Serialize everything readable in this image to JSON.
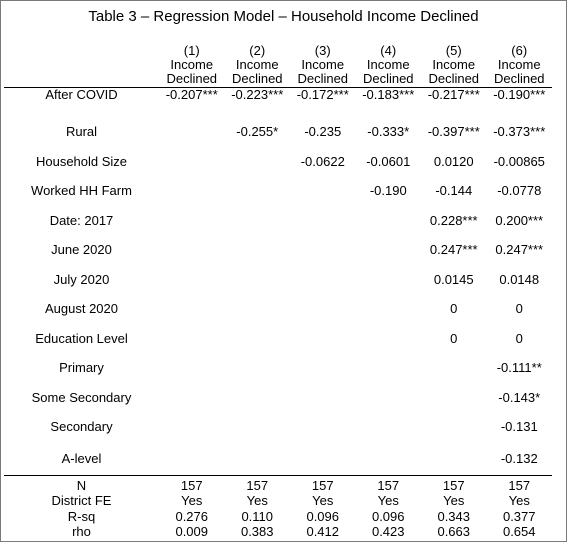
{
  "title": "Table 3 – Regression Model – Household Income Declined",
  "columns": [
    {
      "num": "(1)",
      "line1": "Income",
      "line2": "Declined"
    },
    {
      "num": "(2)",
      "line1": "Income",
      "line2": "Declined"
    },
    {
      "num": "(3)",
      "line1": "Income",
      "line2": "Declined"
    },
    {
      "num": "(4)",
      "line1": "Income",
      "line2": "Declined"
    },
    {
      "num": "(5)",
      "line1": "Income",
      "line2": "Declined"
    },
    {
      "num": "(6)",
      "line1": "Income",
      "line2": "Declined"
    }
  ],
  "rows": [
    {
      "label": "After COVID",
      "values": [
        "-0.207***",
        "-0.223***",
        "-0.172***",
        "-0.183***",
        "-0.217***",
        "-0.190***"
      ]
    },
    {
      "label": "Rural",
      "values": [
        "",
        "-0.255*",
        "-0.235",
        "-0.333*",
        "-0.397***",
        "-0.373***"
      ]
    },
    {
      "label": "Household Size",
      "values": [
        "",
        "",
        "-0.0622",
        "-0.0601",
        "0.0120",
        "-0.00865"
      ]
    },
    {
      "label": "Worked HH Farm",
      "values": [
        "",
        "",
        "",
        "-0.190",
        "-0.144",
        "-0.0778"
      ]
    },
    {
      "label": "Date: 2017",
      "values": [
        "",
        "",
        "",
        "",
        "0.228***",
        "0.200***"
      ]
    },
    {
      "label": "June 2020",
      "values": [
        "",
        "",
        "",
        "",
        "0.247***",
        "0.247***"
      ]
    },
    {
      "label": "July 2020",
      "values": [
        "",
        "",
        "",
        "",
        "0.0145",
        "0.0148"
      ]
    },
    {
      "label": "August 2020",
      "values": [
        "",
        "",
        "",
        "",
        "0",
        "0"
      ]
    },
    {
      "label": "Education Level",
      "values": [
        "",
        "",
        "",
        "",
        "0",
        "0"
      ]
    },
    {
      "label": "Primary",
      "values": [
        "",
        "",
        "",
        "",
        "",
        "-0.111**"
      ]
    },
    {
      "label": "Some Secondary",
      "values": [
        "",
        "",
        "",
        "",
        "",
        "-0.143*"
      ]
    },
    {
      "label": "Secondary",
      "values": [
        "",
        "",
        "",
        "",
        "",
        "-0.131"
      ]
    },
    {
      "label": "A-level",
      "values": [
        "",
        "",
        "",
        "",
        "",
        "-0.132"
      ]
    }
  ],
  "stats": [
    {
      "label": "N",
      "values": [
        "157",
        "157",
        "157",
        "157",
        "157",
        "157"
      ]
    },
    {
      "label": "District FE",
      "values": [
        "Yes",
        "Yes",
        "Yes",
        "Yes",
        "Yes",
        "Yes"
      ]
    },
    {
      "label": "R-sq",
      "values": [
        "0.276",
        "0.110",
        "0.096",
        "0.096",
        "0.343",
        "0.377"
      ]
    },
    {
      "label": "rho",
      "values": [
        "0.009",
        "0.383",
        "0.412",
        "0.423",
        "0.663",
        "0.654"
      ]
    }
  ]
}
